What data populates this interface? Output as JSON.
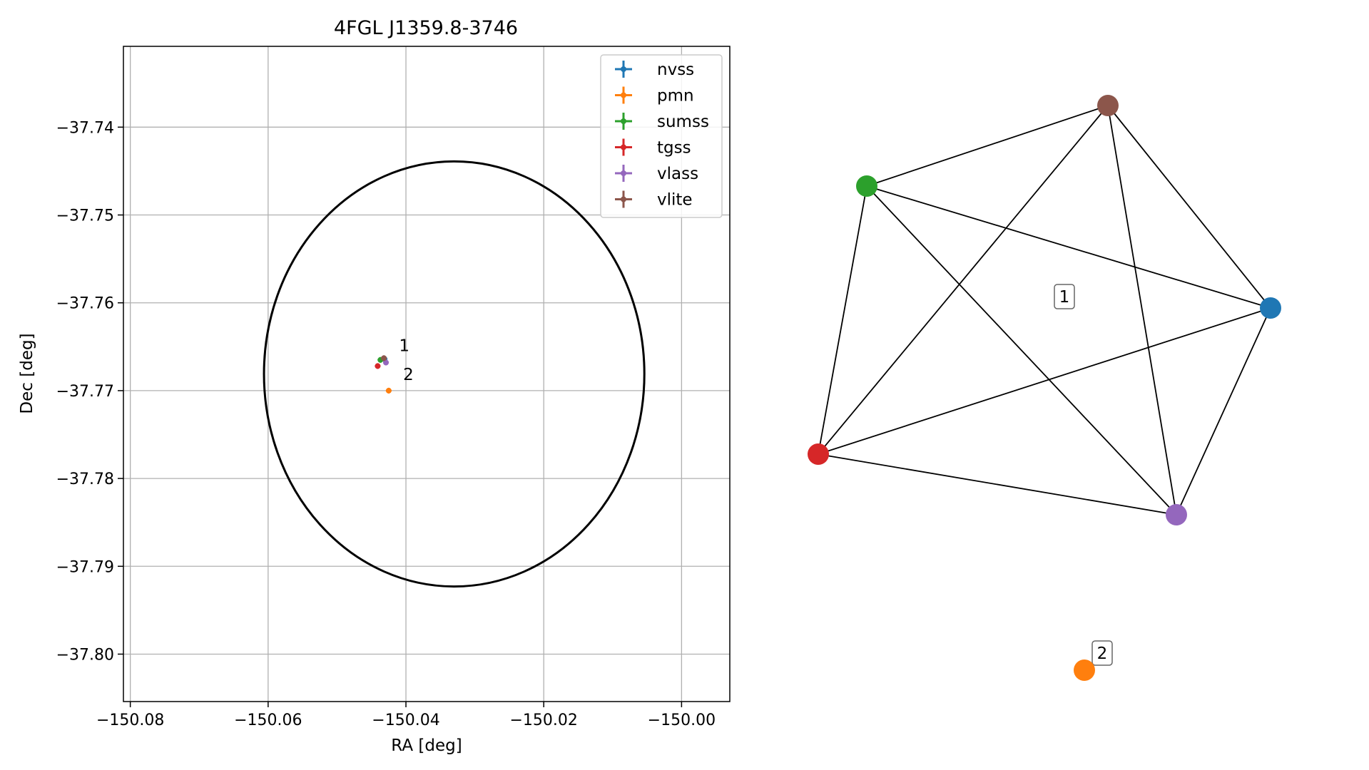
{
  "chart_data": [
    {
      "type": "scatter",
      "title": "4FGL J1359.8-3746",
      "xlabel": "RA [deg]",
      "ylabel": "Dec [deg]",
      "xlim": [
        -150.081,
        -149.993
      ],
      "ylim": [
        -37.8054,
        -37.7308
      ],
      "xticks": [
        -150.08,
        -150.06,
        -150.04,
        -150.02,
        -150.0
      ],
      "xtick_labels": [
        "−150.08",
        "−150.06",
        "−150.04",
        "−150.02",
        "−150.00"
      ],
      "yticks": [
        -37.74,
        -37.75,
        -37.76,
        -37.77,
        -37.78,
        -37.79,
        -37.8
      ],
      "ytick_labels": [
        "−37.74",
        "−37.75",
        "−37.76",
        "−37.77",
        "−37.78",
        "−37.79",
        "−37.80"
      ],
      "grid": true,
      "legend_position": "top-right",
      "series": [
        {
          "name": "nvss",
          "color": "#1f77b4",
          "x": [
            -150.0431
          ],
          "y": [
            -37.7664
          ]
        },
        {
          "name": "pmn",
          "color": "#ff7f0e",
          "x": [
            -150.0425
          ],
          "y": [
            -37.77
          ]
        },
        {
          "name": "sumss",
          "color": "#2ca02c",
          "x": [
            -150.0437
          ],
          "y": [
            -37.7665
          ]
        },
        {
          "name": "tgss",
          "color": "#d62728",
          "x": [
            -150.0441
          ],
          "y": [
            -37.7672
          ]
        },
        {
          "name": "vlass",
          "color": "#9467bd",
          "x": [
            -150.0429
          ],
          "y": [
            -37.7668
          ]
        },
        {
          "name": "vlite",
          "color": "#8c564b",
          "x": [
            -150.0432
          ],
          "y": [
            -37.7663
          ]
        }
      ],
      "ellipse": {
        "center": [
          -150.033,
          -37.7681
        ],
        "semi_x": 0.0276,
        "semi_y": 0.0242,
        "color": "#000000"
      },
      "annotations": [
        {
          "text": "1",
          "x": -150.041,
          "y": -37.7655
        },
        {
          "text": "2",
          "x": -150.0404,
          "y": -37.7688
        }
      ]
    },
    {
      "type": "network",
      "nodes": [
        {
          "id": "nvss",
          "color": "#1f77b4"
        },
        {
          "id": "pmn",
          "color": "#ff7f0e"
        },
        {
          "id": "sumss",
          "color": "#2ca02c"
        },
        {
          "id": "tgss",
          "color": "#d62728"
        },
        {
          "id": "vlass",
          "color": "#9467bd"
        },
        {
          "id": "vlite",
          "color": "#8c564b"
        }
      ],
      "edges": [
        [
          "sumss",
          "vlite"
        ],
        [
          "sumss",
          "nvss"
        ],
        [
          "sumss",
          "tgss"
        ],
        [
          "sumss",
          "vlass"
        ],
        [
          "vlite",
          "nvss"
        ],
        [
          "vlite",
          "tgss"
        ],
        [
          "vlite",
          "vlass"
        ],
        [
          "nvss",
          "tgss"
        ],
        [
          "nvss",
          "vlass"
        ],
        [
          "tgss",
          "vlass"
        ]
      ],
      "cluster_labels": [
        "1",
        "2"
      ]
    }
  ]
}
